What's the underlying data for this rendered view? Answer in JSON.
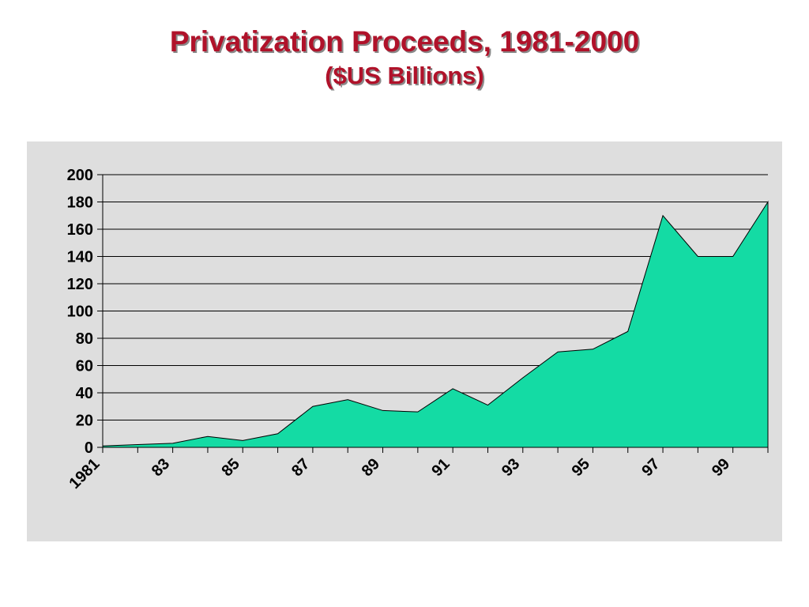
{
  "slide": {
    "title": "Privatization Proceeds, 1981-2000",
    "subtitle": "($US Billions)"
  },
  "chart_data": {
    "type": "area",
    "title": "Privatization Proceeds, 1981-2000",
    "subtitle": "($US Billions)",
    "xlabel": "",
    "ylabel": "",
    "x": [
      1981,
      1982,
      1983,
      1984,
      1985,
      1986,
      1987,
      1988,
      1989,
      1990,
      1991,
      1992,
      1993,
      1994,
      1995,
      1996,
      1997,
      1998,
      1999,
      2000
    ],
    "x_tick_labels": [
      "1981",
      "83",
      "85",
      "87",
      "89",
      "91",
      "93",
      "95",
      "97",
      "99"
    ],
    "x_tick_years": [
      1981,
      1983,
      1985,
      1987,
      1989,
      1991,
      1993,
      1995,
      1997,
      1999
    ],
    "series": [
      {
        "name": "",
        "values": [
          1,
          2,
          3,
          8,
          5,
          10,
          30,
          35,
          27,
          26,
          43,
          31,
          51,
          70,
          72,
          85,
          170,
          140,
          140,
          180
        ],
        "color": "#14dba4"
      }
    ],
    "ylim": [
      0,
      200
    ],
    "y_ticks": [
      0,
      20,
      40,
      60,
      80,
      100,
      120,
      140,
      160,
      180,
      200
    ],
    "grid": true,
    "legend": "none",
    "background": "#dedede"
  }
}
